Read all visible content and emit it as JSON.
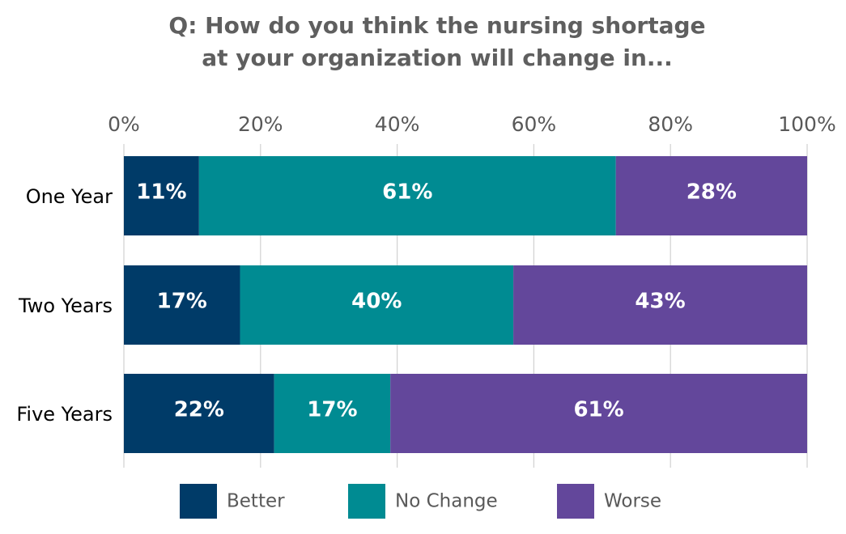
{
  "chart_data": {
    "type": "bar",
    "orientation": "horizontal",
    "stacked": true,
    "title_lines": [
      "Q: How do you think the nursing shortage",
      "at your organization will change in..."
    ],
    "categories": [
      "One Year",
      "Two Years",
      "Five Years"
    ],
    "series": [
      {
        "name": "Better",
        "values": [
          11,
          17,
          22
        ],
        "labels": [
          "11%",
          "17%",
          "22%"
        ],
        "color": "#003B68"
      },
      {
        "name": "No Change",
        "values": [
          61,
          40,
          17
        ],
        "labels": [
          "61%",
          "40%",
          "17%"
        ],
        "color": "#008B92"
      },
      {
        "name": "Worse",
        "values": [
          28,
          43,
          61
        ],
        "labels": [
          "28%",
          "43%",
          "61%"
        ],
        "color": "#63479B"
      }
    ],
    "xaxis": {
      "ticks": [
        0,
        20,
        40,
        60,
        80,
        100
      ],
      "tick_labels": [
        "0%",
        "20%",
        "40%",
        "60%",
        "80%",
        "100%"
      ],
      "range": [
        0,
        100
      ],
      "position": "top"
    },
    "grid": true,
    "legend_position": "bottom"
  }
}
